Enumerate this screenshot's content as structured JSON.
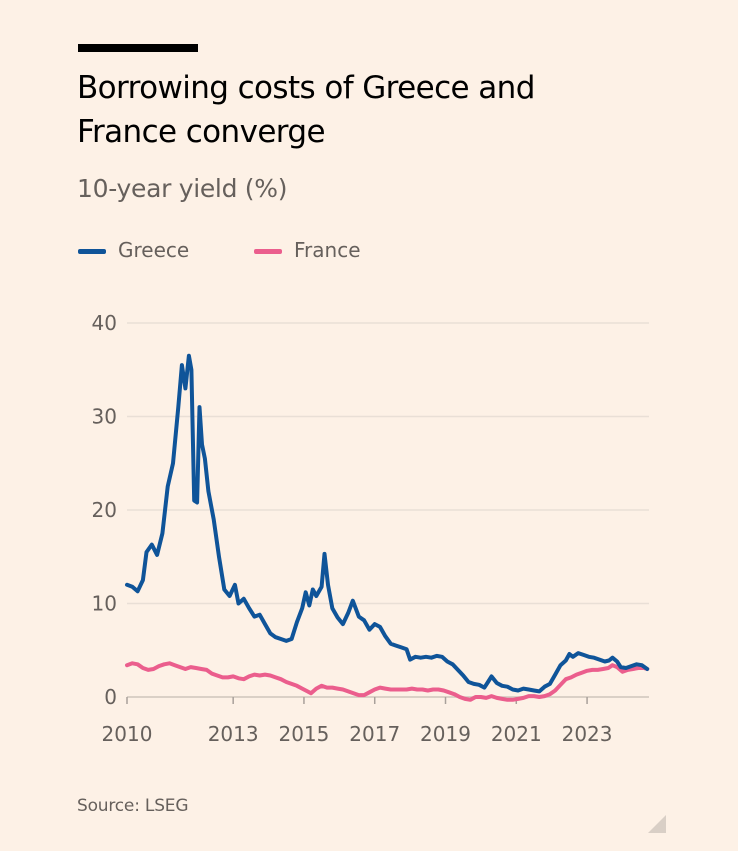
{
  "header": {
    "title": "Borrowing costs of Greece and France converge",
    "subtitle": "10-year yield (%)"
  },
  "footer": {
    "source": "Source: LSEG"
  },
  "colors": {
    "background": "#fdf1e6",
    "greece": "#0f5499",
    "france": "#eb5e8d",
    "grid": "#e9dfd6",
    "text_muted": "#66605c"
  },
  "chart_data": {
    "type": "line",
    "title": "Borrowing costs of Greece and France converge",
    "subtitle": "10-year yield (%)",
    "xlabel": "",
    "ylabel": "",
    "xlim": [
      2010.0,
      2024.75
    ],
    "ylim": [
      0,
      40
    ],
    "yticks": [
      0,
      10,
      20,
      30,
      40
    ],
    "xticks": [
      "2010",
      "2013",
      "2015",
      "2017",
      "2019",
      "2021",
      "2023"
    ],
    "grid": "horizontal",
    "legend_position": "top-left",
    "series": [
      {
        "name": "Greece",
        "color": "#0f5499",
        "points": [
          [
            2010.0,
            12.0
          ],
          [
            2010.15,
            11.8
          ],
          [
            2010.3,
            11.3
          ],
          [
            2010.45,
            12.5
          ],
          [
            2010.55,
            15.5
          ],
          [
            2010.7,
            16.3
          ],
          [
            2010.85,
            15.2
          ],
          [
            2011.0,
            17.5
          ],
          [
            2011.15,
            22.5
          ],
          [
            2011.3,
            25.0
          ],
          [
            2011.45,
            31.0
          ],
          [
            2011.55,
            35.5
          ],
          [
            2011.65,
            33.0
          ],
          [
            2011.75,
            36.5
          ],
          [
            2011.82,
            35.0
          ],
          [
            2011.9,
            21.0
          ],
          [
            2011.98,
            20.8
          ],
          [
            2012.05,
            31.0
          ],
          [
            2012.12,
            27.0
          ],
          [
            2012.2,
            25.5
          ],
          [
            2012.3,
            22.0
          ],
          [
            2012.45,
            19.0
          ],
          [
            2012.6,
            15.0
          ],
          [
            2012.75,
            11.5
          ],
          [
            2012.9,
            10.8
          ],
          [
            2013.05,
            12.0
          ],
          [
            2013.15,
            10.0
          ],
          [
            2013.3,
            10.5
          ],
          [
            2013.45,
            9.5
          ],
          [
            2013.6,
            8.6
          ],
          [
            2013.75,
            8.8
          ],
          [
            2013.9,
            7.8
          ],
          [
            2014.05,
            6.8
          ],
          [
            2014.2,
            6.4
          ],
          [
            2014.35,
            6.2
          ],
          [
            2014.5,
            6.0
          ],
          [
            2014.65,
            6.2
          ],
          [
            2014.8,
            8.0
          ],
          [
            2014.95,
            9.5
          ],
          [
            2015.05,
            11.2
          ],
          [
            2015.15,
            9.8
          ],
          [
            2015.25,
            11.5
          ],
          [
            2015.35,
            10.8
          ],
          [
            2015.5,
            11.8
          ],
          [
            2015.58,
            15.3
          ],
          [
            2015.68,
            12.0
          ],
          [
            2015.8,
            9.5
          ],
          [
            2015.95,
            8.5
          ],
          [
            2016.1,
            7.8
          ],
          [
            2016.25,
            9.0
          ],
          [
            2016.38,
            10.3
          ],
          [
            2016.55,
            8.6
          ],
          [
            2016.7,
            8.2
          ],
          [
            2016.85,
            7.2
          ],
          [
            2017.0,
            7.8
          ],
          [
            2017.15,
            7.5
          ],
          [
            2017.3,
            6.5
          ],
          [
            2017.45,
            5.7
          ],
          [
            2017.6,
            5.5
          ],
          [
            2017.75,
            5.3
          ],
          [
            2017.9,
            5.1
          ],
          [
            2018.0,
            4.0
          ],
          [
            2018.15,
            4.3
          ],
          [
            2018.3,
            4.2
          ],
          [
            2018.45,
            4.3
          ],
          [
            2018.6,
            4.2
          ],
          [
            2018.75,
            4.4
          ],
          [
            2018.9,
            4.3
          ],
          [
            2019.05,
            3.8
          ],
          [
            2019.2,
            3.5
          ],
          [
            2019.35,
            2.9
          ],
          [
            2019.5,
            2.3
          ],
          [
            2019.65,
            1.6
          ],
          [
            2019.8,
            1.4
          ],
          [
            2019.95,
            1.3
          ],
          [
            2020.1,
            1.0
          ],
          [
            2020.2,
            1.6
          ],
          [
            2020.3,
            2.2
          ],
          [
            2020.45,
            1.5
          ],
          [
            2020.6,
            1.2
          ],
          [
            2020.75,
            1.1
          ],
          [
            2020.9,
            0.8
          ],
          [
            2021.05,
            0.7
          ],
          [
            2021.2,
            0.9
          ],
          [
            2021.35,
            0.8
          ],
          [
            2021.5,
            0.7
          ],
          [
            2021.65,
            0.6
          ],
          [
            2021.8,
            1.1
          ],
          [
            2021.95,
            1.4
          ],
          [
            2022.1,
            2.4
          ],
          [
            2022.25,
            3.4
          ],
          [
            2022.4,
            3.9
          ],
          [
            2022.5,
            4.6
          ],
          [
            2022.6,
            4.3
          ],
          [
            2022.75,
            4.7
          ],
          [
            2022.9,
            4.5
          ],
          [
            2023.05,
            4.3
          ],
          [
            2023.2,
            4.2
          ],
          [
            2023.35,
            4.0
          ],
          [
            2023.5,
            3.8
          ],
          [
            2023.62,
            3.9
          ],
          [
            2023.72,
            4.2
          ],
          [
            2023.85,
            3.8
          ],
          [
            2023.95,
            3.2
          ],
          [
            2024.1,
            3.1
          ],
          [
            2024.25,
            3.3
          ],
          [
            2024.4,
            3.5
          ],
          [
            2024.55,
            3.4
          ],
          [
            2024.7,
            3.0
          ]
        ]
      },
      {
        "name": "France",
        "color": "#eb5e8d",
        "points": [
          [
            2010.0,
            3.4
          ],
          [
            2010.15,
            3.6
          ],
          [
            2010.3,
            3.5
          ],
          [
            2010.45,
            3.1
          ],
          [
            2010.6,
            2.9
          ],
          [
            2010.75,
            3.0
          ],
          [
            2010.9,
            3.3
          ],
          [
            2011.05,
            3.5
          ],
          [
            2011.2,
            3.6
          ],
          [
            2011.35,
            3.4
          ],
          [
            2011.5,
            3.2
          ],
          [
            2011.65,
            3.0
          ],
          [
            2011.8,
            3.2
          ],
          [
            2011.95,
            3.1
          ],
          [
            2012.1,
            3.0
          ],
          [
            2012.25,
            2.9
          ],
          [
            2012.4,
            2.5
          ],
          [
            2012.55,
            2.3
          ],
          [
            2012.7,
            2.1
          ],
          [
            2012.85,
            2.1
          ],
          [
            2013.0,
            2.2
          ],
          [
            2013.15,
            2.0
          ],
          [
            2013.3,
            1.9
          ],
          [
            2013.45,
            2.2
          ],
          [
            2013.6,
            2.4
          ],
          [
            2013.75,
            2.3
          ],
          [
            2013.9,
            2.4
          ],
          [
            2014.05,
            2.3
          ],
          [
            2014.2,
            2.1
          ],
          [
            2014.35,
            1.9
          ],
          [
            2014.5,
            1.6
          ],
          [
            2014.65,
            1.4
          ],
          [
            2014.8,
            1.2
          ],
          [
            2014.95,
            0.9
          ],
          [
            2015.1,
            0.6
          ],
          [
            2015.2,
            0.4
          ],
          [
            2015.35,
            0.9
          ],
          [
            2015.5,
            1.2
          ],
          [
            2015.65,
            1.0
          ],
          [
            2015.8,
            1.0
          ],
          [
            2015.95,
            0.9
          ],
          [
            2016.1,
            0.8
          ],
          [
            2016.25,
            0.6
          ],
          [
            2016.4,
            0.4
          ],
          [
            2016.55,
            0.2
          ],
          [
            2016.7,
            0.2
          ],
          [
            2016.85,
            0.5
          ],
          [
            2017.0,
            0.8
          ],
          [
            2017.15,
            1.0
          ],
          [
            2017.3,
            0.9
          ],
          [
            2017.45,
            0.8
          ],
          [
            2017.6,
            0.8
          ],
          [
            2017.75,
            0.8
          ],
          [
            2017.9,
            0.8
          ],
          [
            2018.05,
            0.9
          ],
          [
            2018.2,
            0.8
          ],
          [
            2018.35,
            0.8
          ],
          [
            2018.5,
            0.7
          ],
          [
            2018.65,
            0.8
          ],
          [
            2018.8,
            0.8
          ],
          [
            2018.95,
            0.7
          ],
          [
            2019.1,
            0.5
          ],
          [
            2019.25,
            0.3
          ],
          [
            2019.4,
            0.0
          ],
          [
            2019.55,
            -0.2
          ],
          [
            2019.7,
            -0.3
          ],
          [
            2019.85,
            0.0
          ],
          [
            2020.0,
            0.0
          ],
          [
            2020.15,
            -0.1
          ],
          [
            2020.3,
            0.1
          ],
          [
            2020.45,
            -0.1
          ],
          [
            2020.6,
            -0.2
          ],
          [
            2020.75,
            -0.3
          ],
          [
            2020.9,
            -0.3
          ],
          [
            2021.05,
            -0.2
          ],
          [
            2021.2,
            -0.1
          ],
          [
            2021.35,
            0.1
          ],
          [
            2021.5,
            0.1
          ],
          [
            2021.65,
            0.0
          ],
          [
            2021.8,
            0.1
          ],
          [
            2021.95,
            0.3
          ],
          [
            2022.1,
            0.7
          ],
          [
            2022.25,
            1.3
          ],
          [
            2022.4,
            1.9
          ],
          [
            2022.55,
            2.1
          ],
          [
            2022.7,
            2.4
          ],
          [
            2022.85,
            2.6
          ],
          [
            2023.0,
            2.8
          ],
          [
            2023.15,
            2.9
          ],
          [
            2023.3,
            2.9
          ],
          [
            2023.45,
            3.0
          ],
          [
            2023.6,
            3.1
          ],
          [
            2023.72,
            3.4
          ],
          [
            2023.85,
            3.2
          ],
          [
            2024.0,
            2.7
          ],
          [
            2024.15,
            2.9
          ],
          [
            2024.3,
            3.0
          ],
          [
            2024.45,
            3.1
          ],
          [
            2024.6,
            3.1
          ],
          [
            2024.7,
            3.0
          ]
        ]
      }
    ]
  }
}
